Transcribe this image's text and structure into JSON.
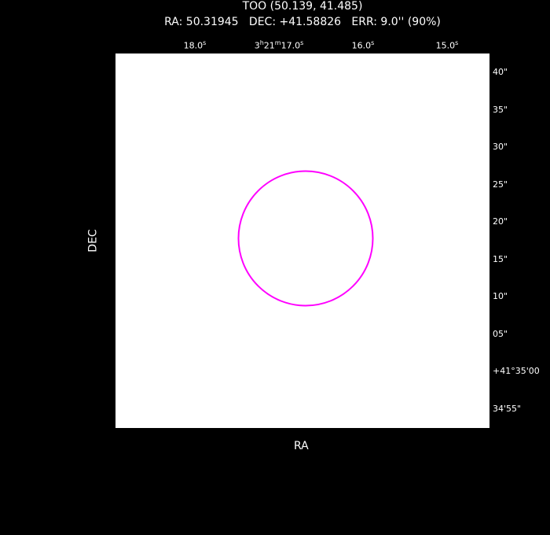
{
  "header": {
    "title": "TOO (50.139, 41.485)",
    "subtitle": "RA: 50.31945   DEC: +41.58826   ERR: 9.0'' (90%)"
  },
  "chart_data": {
    "type": "scatter",
    "title": "TOO (50.139, 41.485)",
    "xlabel": "RA",
    "ylabel": "DEC",
    "x_ticks": [
      {
        "label": "18.0",
        "sup": "s",
        "ra_sec": 18.0
      },
      {
        "label": "3h21m17.0s",
        "parts": [
          "3",
          "h",
          "21",
          "m",
          "17.0",
          "s"
        ],
        "ra_sec": 17.0
      },
      {
        "label": "16.0",
        "sup": "s",
        "ra_sec": 16.0
      },
      {
        "label": "15.0",
        "sup": "s",
        "ra_sec": 15.0
      }
    ],
    "y_ticks": [
      {
        "label": "40\"",
        "dec_arcsec": 40
      },
      {
        "label": "35\"",
        "dec_arcsec": 35
      },
      {
        "label": "30\"",
        "dec_arcsec": 30
      },
      {
        "label": "25\"",
        "dec_arcsec": 25
      },
      {
        "label": "20\"",
        "dec_arcsec": 20
      },
      {
        "label": "15\"",
        "dec_arcsec": 15
      },
      {
        "label": "10\"",
        "dec_arcsec": 10
      },
      {
        "label": "05\"",
        "dec_arcsec": 5
      },
      {
        "label": "+41°35'00",
        "dec_arcsec": 0
      },
      {
        "label": "34'55\"",
        "dec_arcsec": -5
      }
    ],
    "error_circle": {
      "ra_deg": 50.31945,
      "dec_deg": 41.58826,
      "radius_arcsec": 9.0,
      "confidence": "90%",
      "color": "#ff00ff"
    },
    "grid": false
  }
}
